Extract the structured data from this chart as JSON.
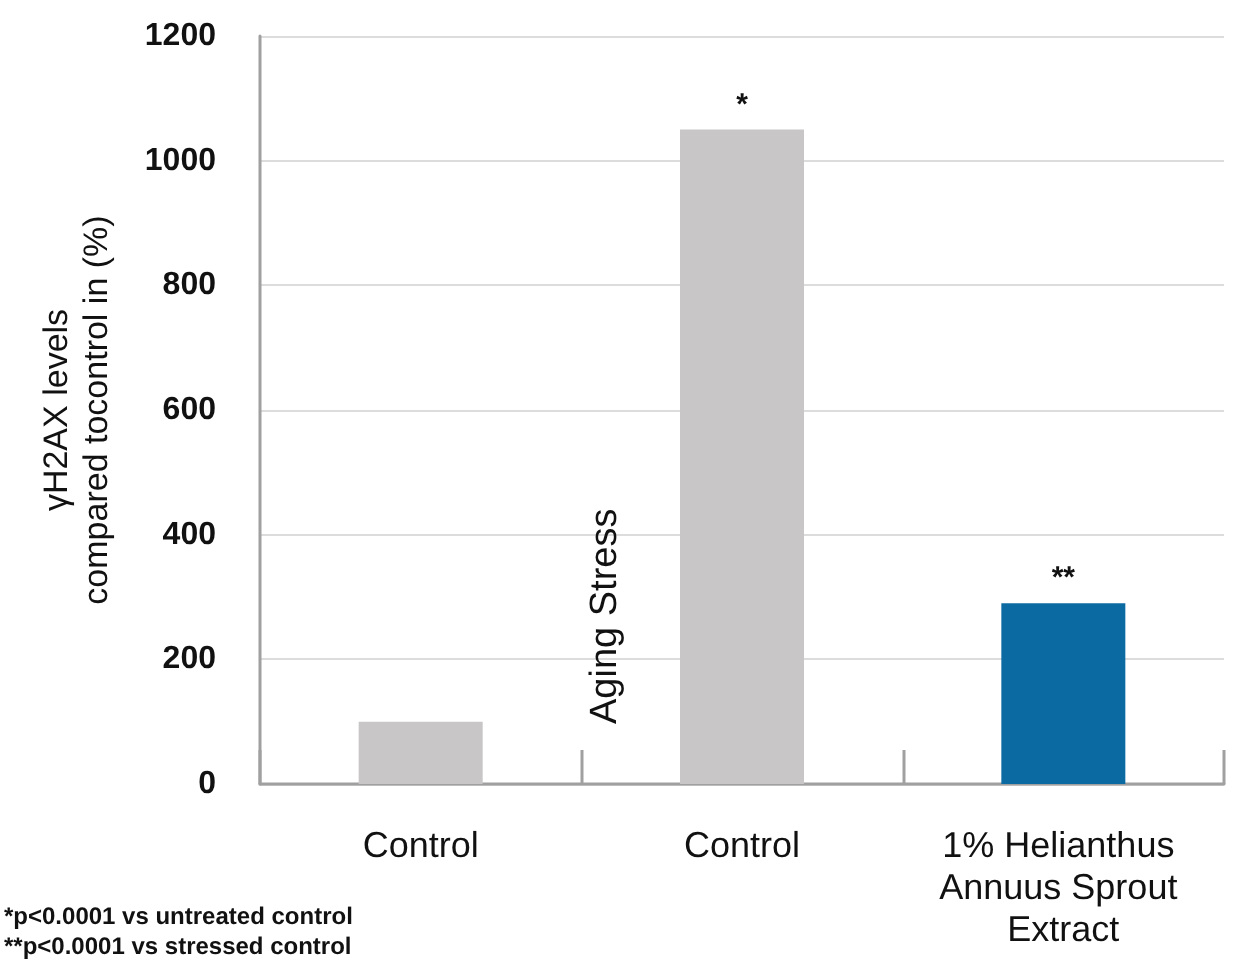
{
  "chart_data": {
    "type": "bar",
    "ylabel": "γH2AX levels\ncompared tocontrol in (%)",
    "categories": [
      "Control",
      "Control",
      "1% Helianthus Annuus Sprout Extract"
    ],
    "values": [
      100,
      1050,
      290
    ],
    "colors": [
      "#c8c6c7",
      "#c8c6c7",
      "#0b6aa2"
    ],
    "value_labels": [
      null,
      "*",
      "**"
    ],
    "ylim": [
      0,
      1200
    ],
    "yticks": [
      0,
      200,
      400,
      600,
      800,
      1000,
      1200
    ],
    "grid": "y",
    "annotations": [
      "Aging Stress",
      "*p<0.0001 vs untreated control",
      "**p<0.0001 vs stressed control"
    ]
  }
}
